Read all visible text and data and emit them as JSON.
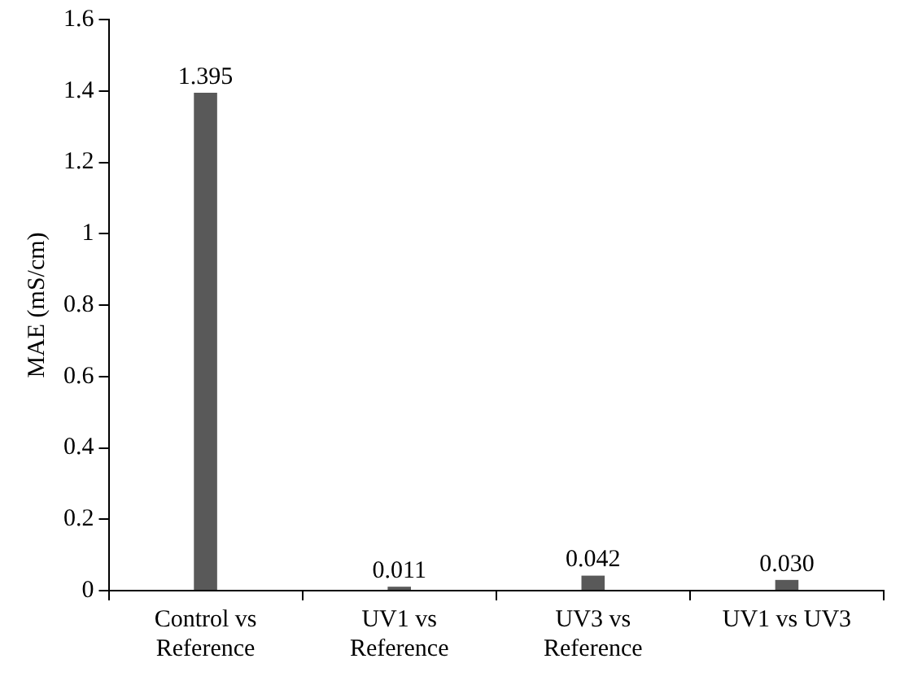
{
  "chart_data": {
    "type": "bar",
    "ylabel": "MAE (mS/cm)",
    "categories": [
      "Control vs\nReference",
      "UV1 vs\nReference",
      "UV3 vs\nReference",
      "UV1 vs UV3"
    ],
    "values": [
      1.395,
      0.011,
      0.042,
      0.03
    ],
    "value_labels": [
      "1.395",
      "0.011",
      "0.042",
      "0.030"
    ],
    "color": "#595959",
    "ylim": [
      0,
      1.6
    ],
    "yticks": [
      0,
      0.2,
      0.4,
      0.6,
      0.8,
      1,
      1.2,
      1.4,
      1.6
    ],
    "grid": false,
    "legend": false
  }
}
